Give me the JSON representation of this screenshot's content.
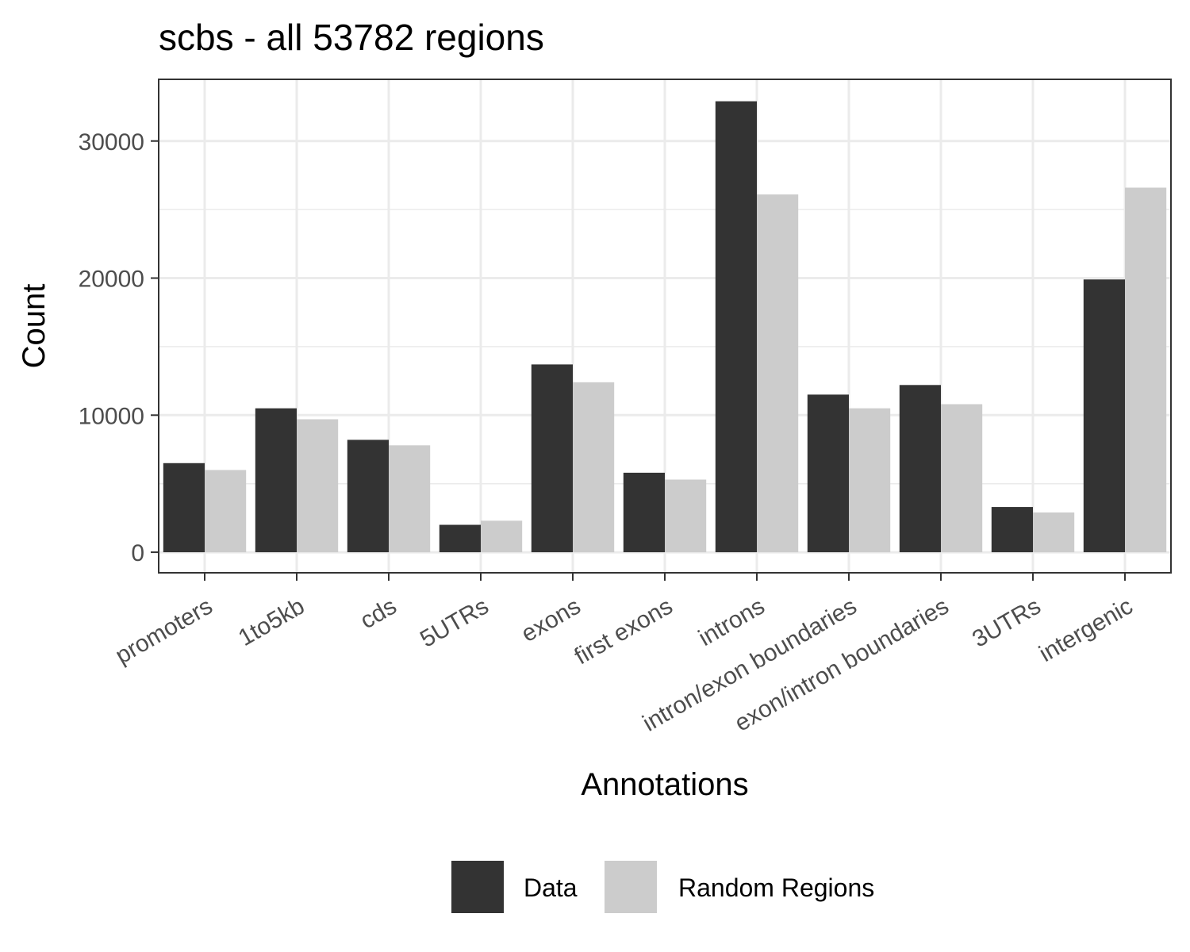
{
  "chart_data": {
    "type": "bar",
    "title": "scbs - all 53782 regions",
    "xlabel": "Annotations",
    "ylabel": "Count",
    "categories": [
      "promoters",
      "1to5kb",
      "cds",
      "5UTRs",
      "exons",
      "first exons",
      "introns",
      "intron/exon boundaries",
      "exon/intron boundaries",
      "3UTRs",
      "intergenic"
    ],
    "series": [
      {
        "name": "Data",
        "color": "#333333",
        "values": [
          6500,
          10500,
          8200,
          2000,
          13700,
          5800,
          32900,
          11500,
          12200,
          3300,
          19900
        ]
      },
      {
        "name": "Random Regions",
        "color": "#cccccc",
        "values": [
          6000,
          9700,
          7800,
          2300,
          12400,
          5300,
          26100,
          10500,
          10800,
          2900,
          26600
        ]
      }
    ],
    "y_ticks": [
      0,
      10000,
      20000,
      30000
    ],
    "ylim": [
      -1500,
      34500
    ],
    "grid": true,
    "legend_position": "bottom"
  }
}
